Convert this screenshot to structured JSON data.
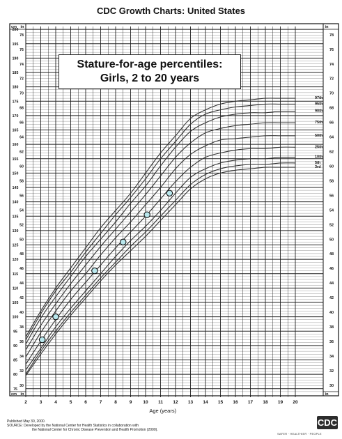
{
  "header": {
    "page_title": "CDC Growth Charts: United States"
  },
  "title_box": {
    "line1": "Stature-for-age percentiles:",
    "line2": "Girls, 2 to 20 years"
  },
  "footer": {
    "published": "Published May 30, 2000.",
    "source_line1": "SOURCE: Developed by the National Center for Health Statistics in collaboration with",
    "source_line2": "the National Center for Chronic Disease Prevention and Health Promotion (2000).",
    "logo_text": "CDC",
    "tagline": "SAFER · HEALTHIER · PEOPLE"
  },
  "chart_data": {
    "type": "line",
    "title": "Stature-for-age percentiles: Girls, 2 to 20 years",
    "xlabel": "Age (years)",
    "xlim": [
      2,
      20
    ],
    "x_ticks": [
      "2",
      "3",
      "4",
      "5",
      "6",
      "7",
      "8",
      "9",
      "10",
      "11",
      "12",
      "13",
      "14",
      "15",
      "16",
      "17",
      "18",
      "19",
      "20"
    ],
    "ylim": [
      73,
      201
    ],
    "y_unit_left": "cm",
    "y_unit_right": "in",
    "cm_ticks": [
      "75",
      "80",
      "85",
      "90",
      "95",
      "100",
      "105",
      "110",
      "115",
      "120",
      "125",
      "130",
      "135",
      "140",
      "145",
      "150",
      "155",
      "160",
      "165",
      "170",
      "175",
      "180",
      "185",
      "190",
      "195",
      "200"
    ],
    "in_ticks": [
      "30",
      "32",
      "34",
      "36",
      "38",
      "40",
      "42",
      "44",
      "46",
      "48",
      "50",
      "52",
      "54",
      "56",
      "58",
      "60",
      "62",
      "64",
      "66",
      "68",
      "70",
      "72",
      "74",
      "76",
      "78"
    ],
    "grid": true,
    "x": [
      2,
      3,
      4,
      5,
      6,
      7,
      8,
      9,
      10,
      11,
      12,
      13,
      14,
      15,
      16,
      17,
      18,
      19,
      20
    ],
    "series": [
      {
        "name": "97th",
        "values": [
          93,
          102,
          110,
          117,
          124,
          131,
          137,
          143,
          150,
          157,
          163,
          169,
          172,
          174,
          175,
          175.5,
          176,
          176,
          176
        ]
      },
      {
        "name": "95th",
        "values": [
          92,
          101,
          109,
          115.5,
          122.5,
          129,
          135.5,
          141.5,
          148,
          155,
          161,
          167,
          170.5,
          172,
          173,
          173.5,
          174,
          174,
          174
        ]
      },
      {
        "name": "90th",
        "values": [
          90.5,
          99.5,
          107,
          114,
          121,
          127,
          133,
          139.5,
          145.5,
          152.5,
          159,
          164.5,
          167.5,
          169.5,
          170.5,
          171,
          171,
          171.5,
          171.5
        ]
      },
      {
        "name": "75th",
        "values": [
          88.5,
          97,
          104.5,
          111.5,
          118,
          124.5,
          130.5,
          136.5,
          142.5,
          149,
          155.5,
          160.5,
          164,
          165.5,
          166.5,
          167,
          167.5,
          167.5,
          167.5
        ]
      },
      {
        "name": "50th",
        "values": [
          86,
          94.5,
          102,
          109,
          115,
          121.5,
          127.5,
          133,
          139,
          145,
          151.5,
          156.5,
          159.5,
          161.5,
          162,
          162.5,
          163,
          163,
          163
        ]
      },
      {
        "name": "25th",
        "values": [
          83.5,
          91.5,
          99,
          106,
          112,
          118,
          124,
          129.5,
          135,
          141,
          147,
          152,
          155.5,
          157,
          158,
          158.5,
          158.5,
          159,
          159
        ]
      },
      {
        "name": "10th",
        "values": [
          81.5,
          89,
          96.5,
          103,
          109,
          115,
          121,
          126.5,
          131.5,
          137,
          143,
          148.5,
          151.5,
          153.5,
          154.5,
          155,
          155,
          155.5,
          155.5
        ]
      },
      {
        "name": "5th",
        "values": [
          80,
          88,
          95,
          101.5,
          107.5,
          113.5,
          119,
          124.5,
          129.5,
          135,
          140.5,
          146,
          149.5,
          151.5,
          152.5,
          153,
          153,
          153.5,
          153.5
        ]
      },
      {
        "name": "3rd",
        "values": [
          79.5,
          87,
          94,
          100.5,
          106.5,
          112.5,
          118,
          123,
          128,
          133.5,
          139,
          144.5,
          148,
          150,
          151,
          151.5,
          152,
          152,
          152
        ]
      }
    ],
    "measurements": [
      {
        "age": 3.1,
        "stature": 92
      },
      {
        "age": 4.0,
        "stature": 100
      },
      {
        "age": 6.6,
        "stature": 116
      },
      {
        "age": 8.5,
        "stature": 126
      },
      {
        "age": 10.1,
        "stature": 135.5
      },
      {
        "age": 11.6,
        "stature": 143
      }
    ],
    "colors": {
      "grid": "#222222",
      "curves": "#333333",
      "marker_fill": "#b8e6ec",
      "marker_stroke": "#111111"
    }
  }
}
